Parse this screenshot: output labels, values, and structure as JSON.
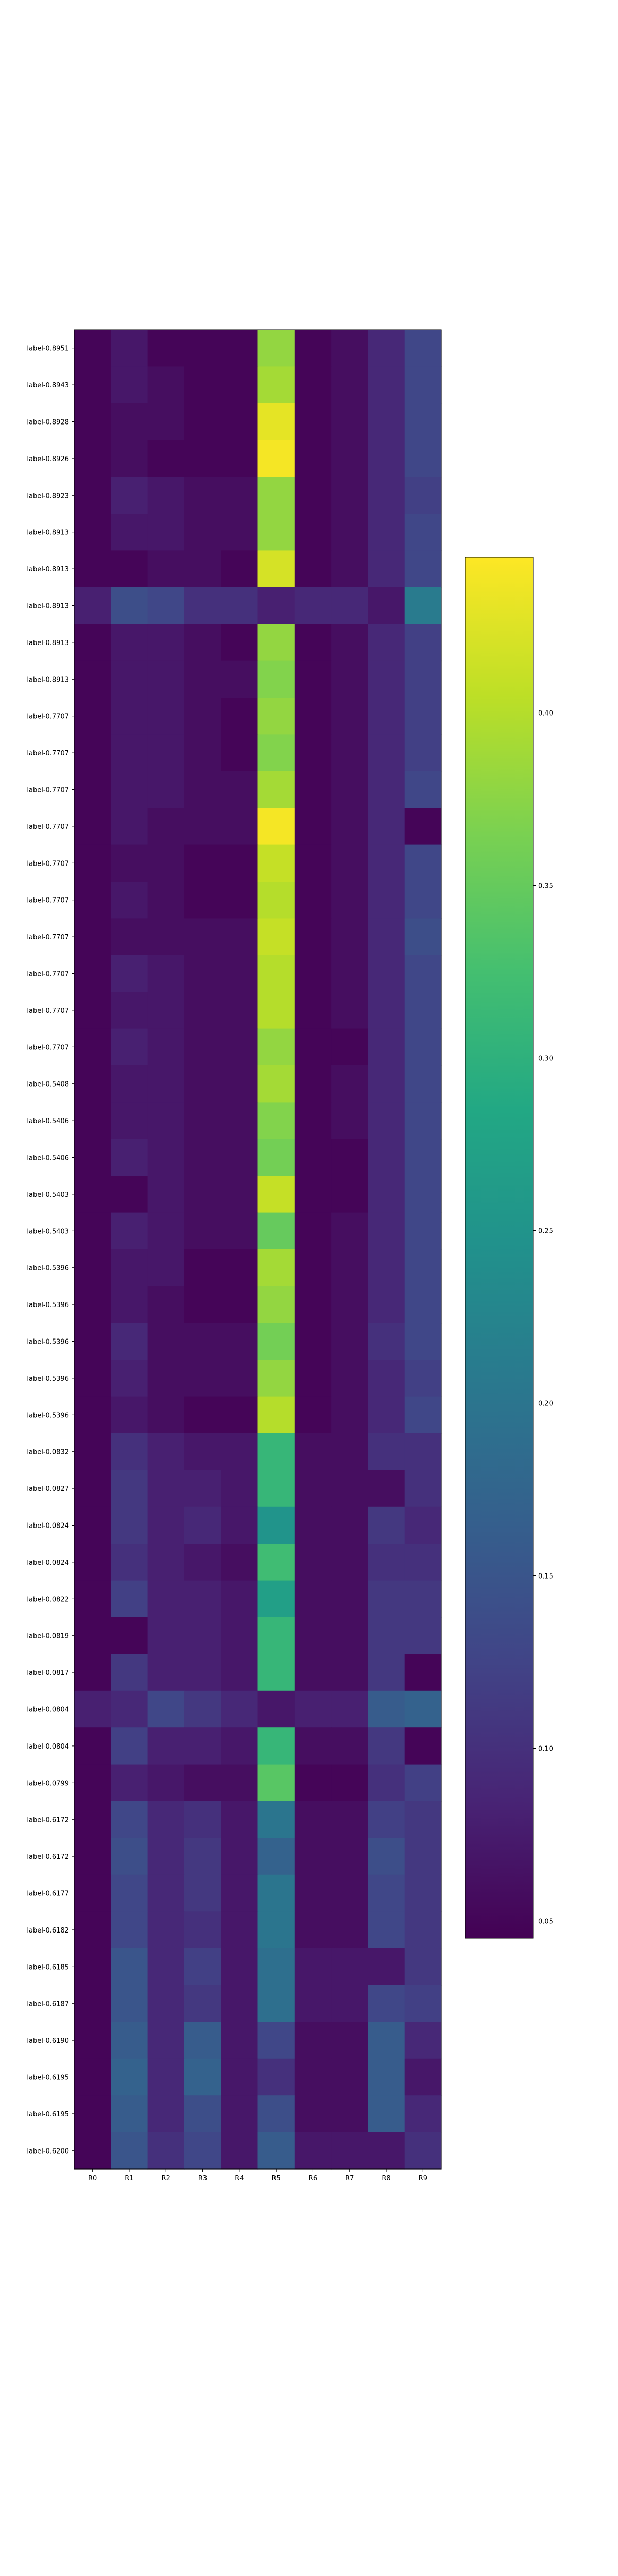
{
  "chart_data": {
    "type": "heatmap",
    "title": "",
    "xlabel": "",
    "ylabel": "",
    "columns": [
      "R0",
      "R1",
      "R2",
      "R3",
      "R4",
      "R5",
      "R6",
      "R7",
      "R8",
      "R9"
    ],
    "rows": [
      "label-0.8951",
      "label-0.8943",
      "label-0.8928",
      "label-0.8926",
      "label-0.8923",
      "label-0.8913",
      "label-0.8913",
      "label-0.8913",
      "label-0.8913",
      "label-0.8913",
      "label-0.7707",
      "label-0.7707",
      "label-0.7707",
      "label-0.7707",
      "label-0.7707",
      "label-0.7707",
      "label-0.7707",
      "label-0.7707",
      "label-0.7707",
      "label-0.7707",
      "label-0.5408",
      "label-0.5406",
      "label-0.5406",
      "label-0.5403",
      "label-0.5403",
      "label-0.5396",
      "label-0.5396",
      "label-0.5396",
      "label-0.5396",
      "label-0.5396",
      "label-0.0832",
      "label-0.0827",
      "label-0.0824",
      "label-0.0824",
      "label-0.0822",
      "label-0.0819",
      "label-0.0817",
      "label-0.0804",
      "label-0.0804",
      "label-0.0799",
      "label-0.6172",
      "label-0.6172",
      "label-0.6177",
      "label-0.6182",
      "label-0.6185",
      "label-0.6187",
      "label-0.6190",
      "label-0.6195",
      "label-0.6195",
      "label-0.6200"
    ],
    "values": [
      [
        0.05,
        0.07,
        0.05,
        0.05,
        0.05,
        0.38,
        0.05,
        0.06,
        0.09,
        0.13
      ],
      [
        0.05,
        0.07,
        0.06,
        0.05,
        0.05,
        0.39,
        0.05,
        0.06,
        0.09,
        0.13
      ],
      [
        0.05,
        0.06,
        0.06,
        0.05,
        0.05,
        0.43,
        0.05,
        0.06,
        0.09,
        0.13
      ],
      [
        0.05,
        0.06,
        0.05,
        0.05,
        0.05,
        0.44,
        0.05,
        0.06,
        0.09,
        0.13
      ],
      [
        0.05,
        0.08,
        0.07,
        0.06,
        0.06,
        0.38,
        0.05,
        0.06,
        0.09,
        0.12
      ],
      [
        0.05,
        0.07,
        0.07,
        0.06,
        0.06,
        0.38,
        0.05,
        0.06,
        0.09,
        0.13
      ],
      [
        0.05,
        0.05,
        0.06,
        0.06,
        0.05,
        0.42,
        0.05,
        0.06,
        0.09,
        0.13
      ],
      [
        0.08,
        0.14,
        0.13,
        0.1,
        0.1,
        0.08,
        0.09,
        0.09,
        0.07,
        0.21
      ],
      [
        0.05,
        0.07,
        0.07,
        0.06,
        0.05,
        0.38,
        0.05,
        0.06,
        0.09,
        0.12
      ],
      [
        0.05,
        0.07,
        0.07,
        0.06,
        0.06,
        0.37,
        0.05,
        0.06,
        0.09,
        0.12
      ],
      [
        0.05,
        0.07,
        0.07,
        0.06,
        0.05,
        0.38,
        0.05,
        0.06,
        0.09,
        0.12
      ],
      [
        0.05,
        0.07,
        0.07,
        0.06,
        0.05,
        0.37,
        0.05,
        0.06,
        0.09,
        0.12
      ],
      [
        0.05,
        0.07,
        0.07,
        0.06,
        0.06,
        0.39,
        0.05,
        0.06,
        0.09,
        0.13
      ],
      [
        0.05,
        0.07,
        0.06,
        0.06,
        0.06,
        0.44,
        0.05,
        0.06,
        0.09,
        0.05
      ],
      [
        0.05,
        0.06,
        0.06,
        0.05,
        0.05,
        0.41,
        0.05,
        0.06,
        0.09,
        0.13
      ],
      [
        0.05,
        0.07,
        0.06,
        0.05,
        0.05,
        0.4,
        0.05,
        0.06,
        0.09,
        0.13
      ],
      [
        0.05,
        0.06,
        0.06,
        0.06,
        0.06,
        0.41,
        0.05,
        0.06,
        0.09,
        0.14
      ],
      [
        0.05,
        0.08,
        0.07,
        0.06,
        0.06,
        0.4,
        0.05,
        0.06,
        0.09,
        0.13
      ],
      [
        0.05,
        0.07,
        0.07,
        0.06,
        0.06,
        0.4,
        0.05,
        0.06,
        0.09,
        0.13
      ],
      [
        0.05,
        0.08,
        0.07,
        0.06,
        0.06,
        0.38,
        0.05,
        0.05,
        0.09,
        0.13
      ],
      [
        0.05,
        0.07,
        0.07,
        0.06,
        0.06,
        0.39,
        0.05,
        0.06,
        0.09,
        0.13
      ],
      [
        0.05,
        0.07,
        0.07,
        0.06,
        0.06,
        0.37,
        0.05,
        0.06,
        0.09,
        0.13
      ],
      [
        0.05,
        0.08,
        0.07,
        0.06,
        0.06,
        0.36,
        0.05,
        0.05,
        0.09,
        0.13
      ],
      [
        0.05,
        0.05,
        0.07,
        0.06,
        0.06,
        0.41,
        0.05,
        0.05,
        0.09,
        0.13
      ],
      [
        0.05,
        0.08,
        0.07,
        0.06,
        0.06,
        0.35,
        0.05,
        0.06,
        0.09,
        0.13
      ],
      [
        0.05,
        0.07,
        0.07,
        0.05,
        0.05,
        0.39,
        0.05,
        0.06,
        0.09,
        0.13
      ],
      [
        0.05,
        0.07,
        0.06,
        0.05,
        0.05,
        0.38,
        0.05,
        0.06,
        0.09,
        0.13
      ],
      [
        0.05,
        0.09,
        0.06,
        0.06,
        0.06,
        0.36,
        0.05,
        0.06,
        0.1,
        0.13
      ],
      [
        0.05,
        0.08,
        0.06,
        0.06,
        0.06,
        0.38,
        0.05,
        0.06,
        0.09,
        0.12
      ],
      [
        0.05,
        0.07,
        0.06,
        0.05,
        0.05,
        0.4,
        0.05,
        0.06,
        0.09,
        0.13
      ],
      [
        0.05,
        0.1,
        0.08,
        0.07,
        0.07,
        0.31,
        0.06,
        0.06,
        0.1,
        0.1
      ],
      [
        0.05,
        0.11,
        0.08,
        0.08,
        0.07,
        0.31,
        0.06,
        0.06,
        0.06,
        0.1
      ],
      [
        0.05,
        0.11,
        0.08,
        0.09,
        0.07,
        0.25,
        0.06,
        0.06,
        0.11,
        0.09
      ],
      [
        0.05,
        0.1,
        0.08,
        0.07,
        0.06,
        0.32,
        0.06,
        0.06,
        0.1,
        0.1
      ],
      [
        0.05,
        0.12,
        0.08,
        0.08,
        0.07,
        0.27,
        0.06,
        0.06,
        0.11,
        0.11
      ],
      [
        0.05,
        0.05,
        0.08,
        0.08,
        0.07,
        0.31,
        0.06,
        0.06,
        0.11,
        0.11
      ],
      [
        0.05,
        0.11,
        0.08,
        0.08,
        0.07,
        0.31,
        0.06,
        0.06,
        0.11,
        0.05
      ],
      [
        0.08,
        0.09,
        0.13,
        0.11,
        0.09,
        0.07,
        0.08,
        0.08,
        0.16,
        0.17
      ],
      [
        0.05,
        0.12,
        0.08,
        0.08,
        0.07,
        0.31,
        0.06,
        0.06,
        0.11,
        0.05
      ],
      [
        0.05,
        0.08,
        0.07,
        0.06,
        0.06,
        0.34,
        0.05,
        0.05,
        0.1,
        0.12
      ],
      [
        0.05,
        0.13,
        0.09,
        0.1,
        0.07,
        0.2,
        0.06,
        0.06,
        0.12,
        0.11
      ],
      [
        0.05,
        0.14,
        0.09,
        0.11,
        0.07,
        0.17,
        0.06,
        0.06,
        0.14,
        0.11
      ],
      [
        0.05,
        0.13,
        0.09,
        0.11,
        0.07,
        0.2,
        0.06,
        0.06,
        0.13,
        0.11
      ],
      [
        0.05,
        0.13,
        0.09,
        0.1,
        0.07,
        0.2,
        0.06,
        0.06,
        0.13,
        0.11
      ],
      [
        0.05,
        0.15,
        0.09,
        0.12,
        0.07,
        0.19,
        0.07,
        0.07,
        0.07,
        0.11
      ],
      [
        0.05,
        0.15,
        0.09,
        0.11,
        0.07,
        0.19,
        0.07,
        0.07,
        0.13,
        0.12
      ],
      [
        0.05,
        0.16,
        0.09,
        0.16,
        0.07,
        0.13,
        0.06,
        0.06,
        0.16,
        0.09
      ],
      [
        0.05,
        0.17,
        0.09,
        0.17,
        0.07,
        0.1,
        0.06,
        0.06,
        0.16,
        0.07
      ],
      [
        0.05,
        0.16,
        0.09,
        0.14,
        0.07,
        0.14,
        0.06,
        0.06,
        0.16,
        0.09
      ],
      [
        0.05,
        0.15,
        0.1,
        0.13,
        0.07,
        0.16,
        0.07,
        0.07,
        0.07,
        0.1
      ]
    ],
    "colormap": "viridis",
    "colorbar": {
      "range": [
        0.045,
        0.445
      ],
      "ticks": [
        0.05,
        0.1,
        0.15,
        0.2,
        0.25,
        0.3,
        0.35,
        0.4
      ],
      "tick_labels": [
        "0.05",
        "0.10",
        "0.15",
        "0.20",
        "0.25",
        "0.30",
        "0.35",
        "0.40"
      ]
    },
    "grid": false,
    "legend": "none"
  }
}
